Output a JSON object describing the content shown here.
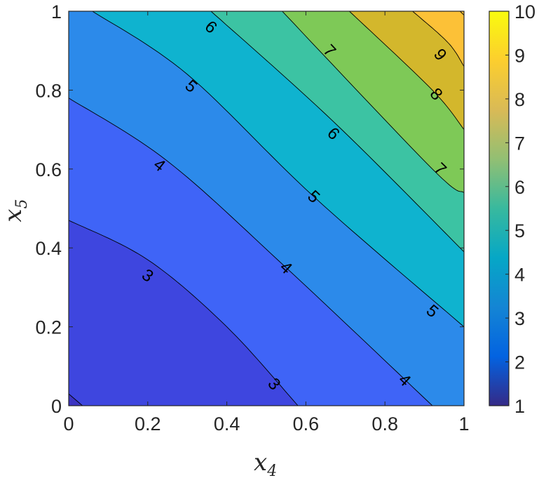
{
  "chart_data": {
    "type": "contour",
    "title": "",
    "xlabel": "x",
    "xlabel_subscript": "4",
    "ylabel": "x",
    "ylabel_subscript": "5",
    "xlim": [
      0,
      1
    ],
    "ylim": [
      0,
      1
    ],
    "xticks": [
      "0",
      "0.2",
      "0.4",
      "0.6",
      "0.8",
      "1"
    ],
    "yticks": [
      "0",
      "0.2",
      "0.4",
      "0.6",
      "0.8",
      "1"
    ],
    "colorbar": {
      "range": [
        1,
        10
      ],
      "ticks": [
        "1",
        "2",
        "3",
        "4",
        "5",
        "6",
        "7",
        "8",
        "9",
        "10"
      ],
      "colormap": "parula"
    },
    "levels": [
      2,
      3,
      4,
      5,
      6,
      7,
      8,
      9,
      10
    ],
    "contour_lines": [
      {
        "level": 3,
        "x": [
          0.0,
          0.2,
          0.4,
          0.58
        ],
        "y": [
          0.47,
          0.37,
          0.2,
          0.0
        ]
      },
      {
        "level": 4,
        "x": [
          0.0,
          0.25,
          0.55,
          0.92
        ],
        "y": [
          0.78,
          0.62,
          0.35,
          0.0
        ]
      },
      {
        "level": 5,
        "x": [
          0.06,
          0.3,
          0.62,
          1.0
        ],
        "y": [
          1.0,
          0.84,
          0.53,
          0.2
        ]
      },
      {
        "level": 6,
        "x": [
          0.36,
          0.67,
          1.0
        ],
        "y": [
          1.0,
          0.72,
          0.39
        ]
      },
      {
        "level": 7,
        "x": [
          0.54,
          0.92,
          1.0
        ],
        "y": [
          1.0,
          0.6,
          0.54
        ]
      },
      {
        "level": 8,
        "x": [
          0.71,
          0.92,
          1.0
        ],
        "y": [
          1.0,
          0.8,
          0.7
        ]
      },
      {
        "level": 9,
        "x": [
          0.87,
          0.96,
          1.0
        ],
        "y": [
          1.0,
          0.92,
          0.86
        ]
      },
      {
        "level": 10,
        "x": [
          0.99,
          1.0
        ],
        "y": [
          1.0,
          0.99
        ]
      }
    ],
    "contour_labels": [
      {
        "text": "3",
        "x": 0.2,
        "y": 0.33
      },
      {
        "text": "3",
        "x": 0.52,
        "y": 0.055
      },
      {
        "text": "4",
        "x": 0.23,
        "y": 0.61
      },
      {
        "text": "4",
        "x": 0.55,
        "y": 0.35
      },
      {
        "text": "4",
        "x": 0.85,
        "y": 0.065
      },
      {
        "text": "5",
        "x": 0.31,
        "y": 0.81
      },
      {
        "text": "5",
        "x": 0.62,
        "y": 0.53
      },
      {
        "text": "5",
        "x": 0.92,
        "y": 0.24
      },
      {
        "text": "6",
        "x": 0.36,
        "y": 0.96
      },
      {
        "text": "6",
        "x": 0.67,
        "y": 0.69
      },
      {
        "text": "7",
        "x": 0.66,
        "y": 0.9
      },
      {
        "text": "7",
        "x": 0.94,
        "y": 0.6
      },
      {
        "text": "8",
        "x": 0.93,
        "y": 0.79
      },
      {
        "text": "9",
        "x": 0.94,
        "y": 0.89
      }
    ]
  },
  "colors": {
    "band_1_2": "#3c34c2",
    "band_2_3": "#3e46df",
    "band_3_4": "#3f64f7",
    "band_4_5": "#2c8aea",
    "band_5_6": "#0fb3cf",
    "band_6_7": "#3cc3a3",
    "band_7_8": "#7ec957",
    "band_8_9": "#d3b72c",
    "band_9_10": "#fcc137",
    "colorbar_stops": [
      "#352a87",
      "#0363e1",
      "#1485d4",
      "#06a7c6",
      "#38b99e",
      "#92bf73",
      "#d9ba56",
      "#fcce2e",
      "#f9fb0e"
    ]
  }
}
